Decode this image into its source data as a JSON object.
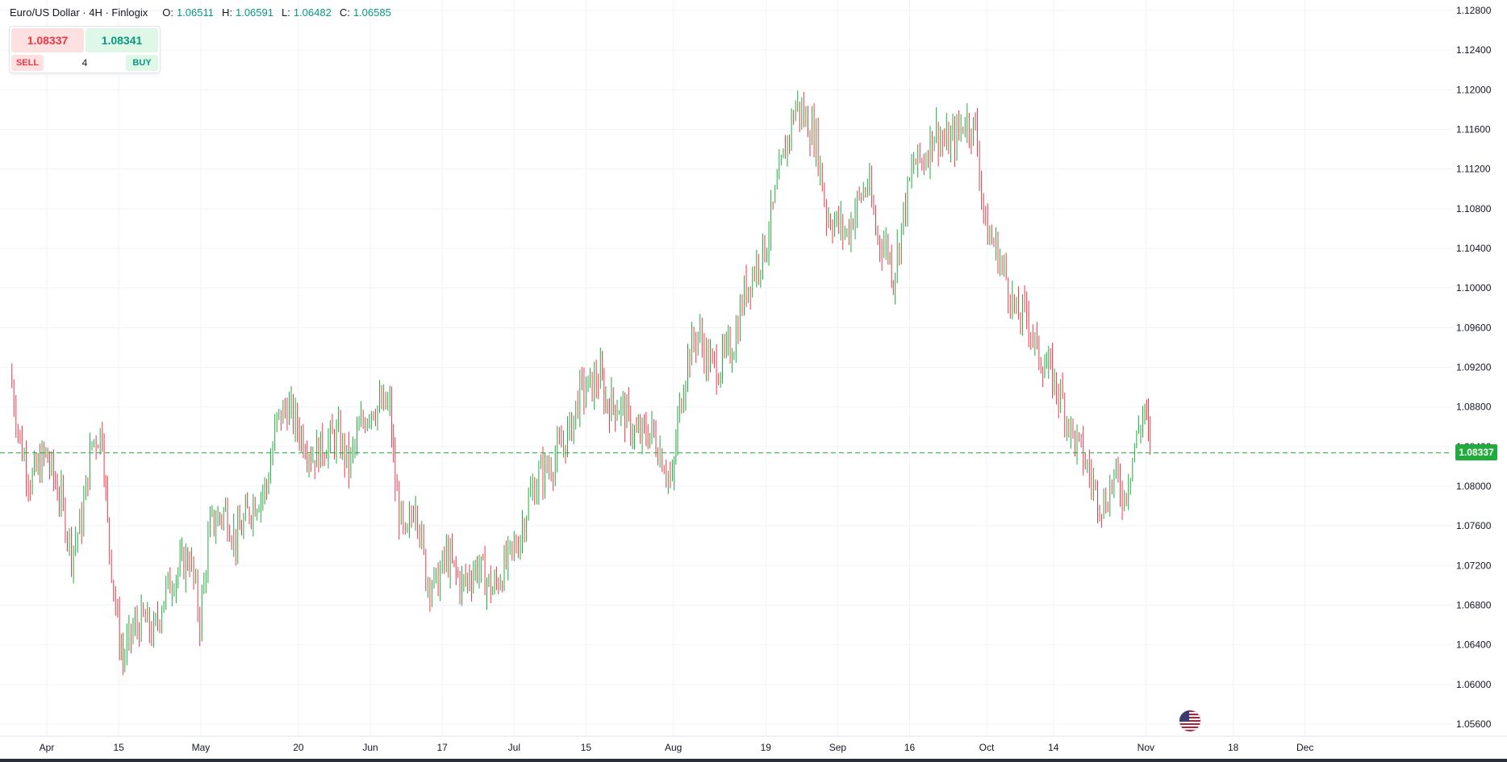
{
  "header": {
    "title": "Euro/US Dollar · 4H · Finlogix",
    "ohlc": [
      {
        "key": "O:",
        "value": "1.06511"
      },
      {
        "key": "H:",
        "value": "1.06591"
      },
      {
        "key": "L:",
        "value": "1.06482"
      },
      {
        "key": "C:",
        "value": "1.06585"
      }
    ]
  },
  "trade": {
    "sell_price": "1.08337",
    "buy_price": "1.08341",
    "sell_label": "SELL",
    "buy_label": "BUY",
    "quantity": "4"
  },
  "last_price": "1.08337",
  "colors": {
    "up": "#22ab3d",
    "down": "#f23645",
    "grid": "#f0f3fa",
    "axis_text": "#131722"
  },
  "event_icon": "us-flag-icon",
  "chart_data": {
    "type": "candlestick",
    "symbol": "EURUSD",
    "timeframe": "4H",
    "grid": true,
    "ylim": [
      1.0544,
      1.1284
    ],
    "y_ticks": [
      "1.12800",
      "1.12400",
      "1.12000",
      "1.11600",
      "1.11200",
      "1.10800",
      "1.10400",
      "1.10000",
      "1.09600",
      "1.09200",
      "1.08800",
      "1.08400",
      "1.08000",
      "1.07600",
      "1.07200",
      "1.06800",
      "1.06400",
      "1.06000",
      "1.05600"
    ],
    "x_ticks": [
      {
        "label": "Apr",
        "date": "2024-04-01"
      },
      {
        "label": "15",
        "date": "2024-04-15"
      },
      {
        "label": "May",
        "date": "2024-05-01"
      },
      {
        "label": "20",
        "date": "2024-05-20"
      },
      {
        "label": "Jun",
        "date": "2024-06-03"
      },
      {
        "label": "17",
        "date": "2024-06-17"
      },
      {
        "label": "Jul",
        "date": "2024-07-01"
      },
      {
        "label": "15",
        "date": "2024-07-15"
      },
      {
        "label": "Aug",
        "date": "2024-08-01"
      },
      {
        "label": "19",
        "date": "2024-08-19"
      },
      {
        "label": "Sep",
        "date": "2024-09-02"
      },
      {
        "label": "16",
        "date": "2024-09-16"
      },
      {
        "label": "Oct",
        "date": "2024-10-01"
      },
      {
        "label": "14",
        "date": "2024-10-14"
      },
      {
        "label": "Nov",
        "date": "2024-11-01"
      },
      {
        "label": "18",
        "date": "2024-11-18"
      },
      {
        "label": "Dec",
        "date": "2024-12-02"
      }
    ],
    "last_price": 1.08337,
    "series": [
      {
        "values": [
          [
            "2024-03-25",
            1.0915
          ],
          [
            "2024-03-27",
            1.0845
          ],
          [
            "2024-03-29",
            1.0805
          ],
          [
            "2024-04-01",
            1.0832
          ],
          [
            "2024-04-04",
            1.0785
          ],
          [
            "2024-04-06",
            1.0735
          ],
          [
            "2024-04-08",
            1.0765
          ],
          [
            "2024-04-10",
            1.0845
          ],
          [
            "2024-04-12",
            1.0855
          ],
          [
            "2024-04-13",
            1.076
          ],
          [
            "2024-04-15",
            1.066
          ],
          [
            "2024-04-16",
            1.0625
          ],
          [
            "2024-04-18",
            1.0655
          ],
          [
            "2024-04-20",
            1.0665
          ],
          [
            "2024-04-22",
            1.065
          ],
          [
            "2024-04-24",
            1.069
          ],
          [
            "2024-04-26",
            1.071
          ],
          [
            "2024-04-29",
            1.073
          ],
          [
            "2024-05-01",
            1.0665
          ],
          [
            "2024-05-03",
            1.076
          ],
          [
            "2024-05-06",
            1.0775
          ],
          [
            "2024-05-08",
            1.0745
          ],
          [
            "2024-05-11",
            1.078
          ],
          [
            "2024-05-14",
            1.08
          ],
          [
            "2024-05-16",
            1.0865
          ],
          [
            "2024-05-18",
            1.088
          ],
          [
            "2024-05-20",
            1.086
          ],
          [
            "2024-05-23",
            1.083
          ],
          [
            "2024-05-26",
            1.0845
          ],
          [
            "2024-05-28",
            1.085
          ],
          [
            "2024-05-30",
            1.082
          ],
          [
            "2024-06-01",
            1.0855
          ],
          [
            "2024-06-03",
            1.088
          ],
          [
            "2024-06-05",
            1.088
          ],
          [
            "2024-06-07",
            1.088
          ],
          [
            "2024-06-08",
            1.08
          ],
          [
            "2024-06-10",
            1.074
          ],
          [
            "2024-06-12",
            1.079
          ],
          [
            "2024-06-14",
            1.071
          ],
          [
            "2024-06-16",
            1.07
          ],
          [
            "2024-06-18",
            1.073
          ],
          [
            "2024-06-21",
            1.07
          ],
          [
            "2024-06-24",
            1.072
          ],
          [
            "2024-06-27",
            1.0695
          ],
          [
            "2024-06-30",
            1.0725
          ],
          [
            "2024-07-02",
            1.0745
          ],
          [
            "2024-07-04",
            1.0785
          ],
          [
            "2024-07-06",
            1.081
          ],
          [
            "2024-07-08",
            1.082
          ],
          [
            "2024-07-10",
            1.0835
          ],
          [
            "2024-07-12",
            1.0855
          ],
          [
            "2024-07-14",
            1.0895
          ],
          [
            "2024-07-16",
            1.09
          ],
          [
            "2024-07-18",
            1.091
          ],
          [
            "2024-07-19",
            1.0885
          ],
          [
            "2024-07-22",
            1.088
          ],
          [
            "2024-07-25",
            1.085
          ],
          [
            "2024-07-28",
            1.0855
          ],
          [
            "2024-07-30",
            1.083
          ],
          [
            "2024-08-01",
            1.08
          ],
          [
            "2024-08-02",
            1.0865
          ],
          [
            "2024-08-04",
            1.093
          ],
          [
            "2024-08-06",
            1.0955
          ],
          [
            "2024-08-08",
            1.0925
          ],
          [
            "2024-08-10",
            1.092
          ],
          [
            "2024-08-13",
            1.0945
          ],
          [
            "2024-08-15",
            1.0995
          ],
          [
            "2024-08-17",
            1.102
          ],
          [
            "2024-08-19",
            1.104
          ],
          [
            "2024-08-21",
            1.109
          ],
          [
            "2024-08-23",
            1.114
          ],
          [
            "2024-08-25",
            1.1185
          ],
          [
            "2024-08-27",
            1.117
          ],
          [
            "2024-08-29",
            1.115
          ],
          [
            "2024-08-31",
            1.1075
          ],
          [
            "2024-09-02",
            1.1065
          ],
          [
            "2024-09-04",
            1.1055
          ],
          [
            "2024-09-06",
            1.1085
          ],
          [
            "2024-09-08",
            1.1105
          ],
          [
            "2024-09-10",
            1.105
          ],
          [
            "2024-09-12",
            1.104
          ],
          [
            "2024-09-13",
            1.101
          ],
          [
            "2024-09-15",
            1.1075
          ],
          [
            "2024-09-17",
            1.1125
          ],
          [
            "2024-09-19",
            1.113
          ],
          [
            "2024-09-21",
            1.116
          ],
          [
            "2024-09-23",
            1.1145
          ],
          [
            "2024-09-25",
            1.115
          ],
          [
            "2024-09-27",
            1.117
          ],
          [
            "2024-09-29",
            1.116
          ],
          [
            "2024-10-01",
            1.106
          ],
          [
            "2024-10-03",
            1.104
          ],
          [
            "2024-10-05",
            1.101
          ],
          [
            "2024-10-07",
            1.097
          ],
          [
            "2024-10-09",
            1.0975
          ],
          [
            "2024-10-11",
            1.0935
          ],
          [
            "2024-10-14",
            1.091
          ],
          [
            "2024-10-16",
            1.0885
          ],
          [
            "2024-10-18",
            1.085
          ],
          [
            "2024-10-20",
            1.083
          ],
          [
            "2024-10-22",
            1.08
          ],
          [
            "2024-10-24",
            1.078
          ],
          [
            "2024-10-26",
            1.081
          ],
          [
            "2024-10-28",
            1.079
          ],
          [
            "2024-10-30",
            1.084
          ],
          [
            "2024-11-01",
            1.088
          ],
          [
            "2024-11-02",
            1.08337
          ]
        ]
      }
    ]
  }
}
